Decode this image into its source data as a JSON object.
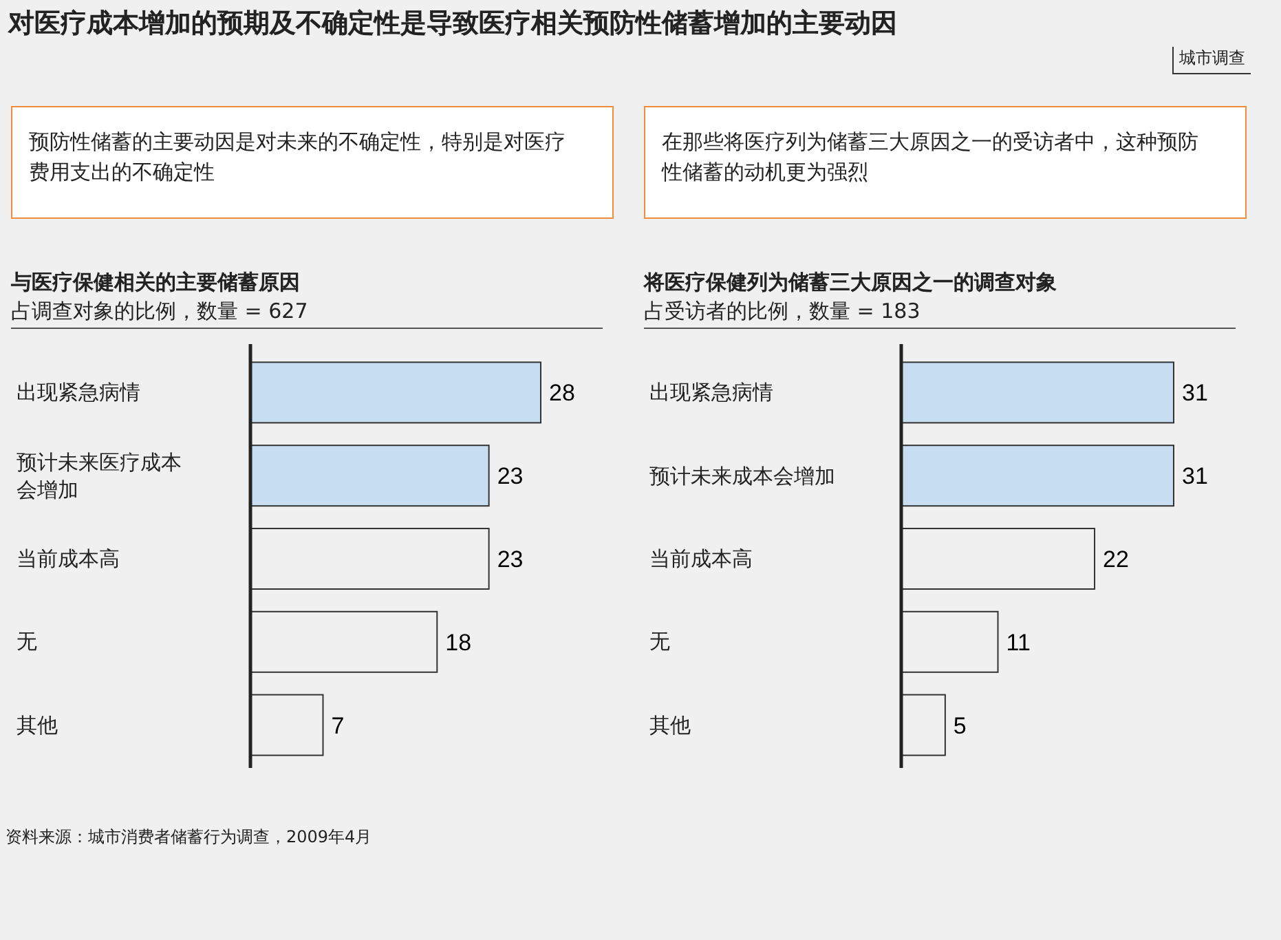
{
  "chart_data": [
    {
      "type": "other",
      "title": "对医疗成本增加的预期及不确定性是导致医疗相关预防性储蓄增加的主要动因",
      "annotations": [
        "城市调查",
        "资料来源：城市消费者储蓄行为调查，2009年4月"
      ]
    },
    {
      "type": "bar",
      "orientation": "horizontal",
      "title": "与医疗保健相关的主要储蓄原因",
      "subtitle": "占调查对象的比例，数量 = 627",
      "annotations": [
        "预防性储蓄的主要动因是对未来的不确定性，特别是对医疗费用支出的不确定性"
      ],
      "categories": [
        "出现紧急病情",
        "预计未来医疗成本会增加",
        "当前成本高",
        "无",
        "其他"
      ],
      "values": [
        28,
        23,
        23,
        18,
        7
      ],
      "colors": [
        "#c6ddf2",
        "#c6ddf2",
        "#f0f0f0",
        "#f0f0f0",
        "#f0f0f0"
      ],
      "data_labels": true
    },
    {
      "type": "bar",
      "orientation": "horizontal",
      "title": "将医疗保健列为储蓄三大原因之一的调查对象",
      "subtitle": "占受访者的比例，数量 = 183",
      "annotations": [
        "在那些将医疗列为储蓄三大原因之一的受访者中，这种预防性储蓄的动机更为强烈"
      ],
      "categories": [
        "出现紧急病情",
        "预计未来成本会增加",
        "当前成本高",
        "无",
        "其他"
      ],
      "values": [
        31,
        31,
        22,
        11,
        5
      ],
      "colors": [
        "#c6ddf2",
        "#c6ddf2",
        "#f0f0f0",
        "#f0f0f0",
        "#f0f0f0"
      ],
      "data_labels": true
    }
  ]
}
